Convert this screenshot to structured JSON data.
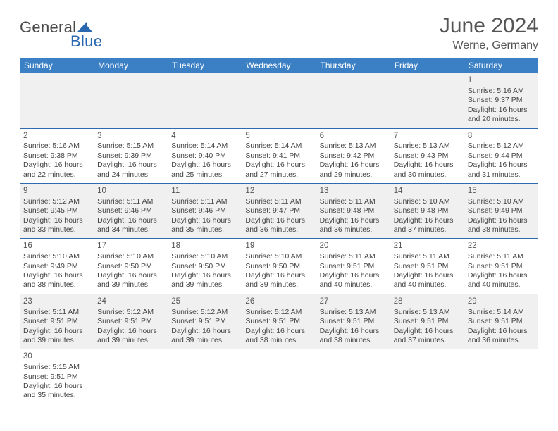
{
  "brand": {
    "part1": "General",
    "part2": "Blue"
  },
  "title": "June 2024",
  "location": "Werne, Germany",
  "colors": {
    "header_bg": "#3b7fc4",
    "header_fg": "#ffffff",
    "row_alt_bg": "#f0f0f0",
    "divider": "#2e6aad",
    "brand_gray": "#4a4a4a",
    "brand_blue": "#2967b0"
  },
  "daysOfWeek": [
    "Sunday",
    "Monday",
    "Tuesday",
    "Wednesday",
    "Thursday",
    "Friday",
    "Saturday"
  ],
  "startWeekday": 6,
  "days": [
    {
      "n": 1,
      "sunrise": "Sunrise: 5:16 AM",
      "sunset": "Sunset: 9:37 PM",
      "daylight": "Daylight: 16 hours and 20 minutes."
    },
    {
      "n": 2,
      "sunrise": "Sunrise: 5:16 AM",
      "sunset": "Sunset: 9:38 PM",
      "daylight": "Daylight: 16 hours and 22 minutes."
    },
    {
      "n": 3,
      "sunrise": "Sunrise: 5:15 AM",
      "sunset": "Sunset: 9:39 PM",
      "daylight": "Daylight: 16 hours and 24 minutes."
    },
    {
      "n": 4,
      "sunrise": "Sunrise: 5:14 AM",
      "sunset": "Sunset: 9:40 PM",
      "daylight": "Daylight: 16 hours and 25 minutes."
    },
    {
      "n": 5,
      "sunrise": "Sunrise: 5:14 AM",
      "sunset": "Sunset: 9:41 PM",
      "daylight": "Daylight: 16 hours and 27 minutes."
    },
    {
      "n": 6,
      "sunrise": "Sunrise: 5:13 AM",
      "sunset": "Sunset: 9:42 PM",
      "daylight": "Daylight: 16 hours and 29 minutes."
    },
    {
      "n": 7,
      "sunrise": "Sunrise: 5:13 AM",
      "sunset": "Sunset: 9:43 PM",
      "daylight": "Daylight: 16 hours and 30 minutes."
    },
    {
      "n": 8,
      "sunrise": "Sunrise: 5:12 AM",
      "sunset": "Sunset: 9:44 PM",
      "daylight": "Daylight: 16 hours and 31 minutes."
    },
    {
      "n": 9,
      "sunrise": "Sunrise: 5:12 AM",
      "sunset": "Sunset: 9:45 PM",
      "daylight": "Daylight: 16 hours and 33 minutes."
    },
    {
      "n": 10,
      "sunrise": "Sunrise: 5:11 AM",
      "sunset": "Sunset: 9:46 PM",
      "daylight": "Daylight: 16 hours and 34 minutes."
    },
    {
      "n": 11,
      "sunrise": "Sunrise: 5:11 AM",
      "sunset": "Sunset: 9:46 PM",
      "daylight": "Daylight: 16 hours and 35 minutes."
    },
    {
      "n": 12,
      "sunrise": "Sunrise: 5:11 AM",
      "sunset": "Sunset: 9:47 PM",
      "daylight": "Daylight: 16 hours and 36 minutes."
    },
    {
      "n": 13,
      "sunrise": "Sunrise: 5:11 AM",
      "sunset": "Sunset: 9:48 PM",
      "daylight": "Daylight: 16 hours and 36 minutes."
    },
    {
      "n": 14,
      "sunrise": "Sunrise: 5:10 AM",
      "sunset": "Sunset: 9:48 PM",
      "daylight": "Daylight: 16 hours and 37 minutes."
    },
    {
      "n": 15,
      "sunrise": "Sunrise: 5:10 AM",
      "sunset": "Sunset: 9:49 PM",
      "daylight": "Daylight: 16 hours and 38 minutes."
    },
    {
      "n": 16,
      "sunrise": "Sunrise: 5:10 AM",
      "sunset": "Sunset: 9:49 PM",
      "daylight": "Daylight: 16 hours and 38 minutes."
    },
    {
      "n": 17,
      "sunrise": "Sunrise: 5:10 AM",
      "sunset": "Sunset: 9:50 PM",
      "daylight": "Daylight: 16 hours and 39 minutes."
    },
    {
      "n": 18,
      "sunrise": "Sunrise: 5:10 AM",
      "sunset": "Sunset: 9:50 PM",
      "daylight": "Daylight: 16 hours and 39 minutes."
    },
    {
      "n": 19,
      "sunrise": "Sunrise: 5:10 AM",
      "sunset": "Sunset: 9:50 PM",
      "daylight": "Daylight: 16 hours and 39 minutes."
    },
    {
      "n": 20,
      "sunrise": "Sunrise: 5:11 AM",
      "sunset": "Sunset: 9:51 PM",
      "daylight": "Daylight: 16 hours and 40 minutes."
    },
    {
      "n": 21,
      "sunrise": "Sunrise: 5:11 AM",
      "sunset": "Sunset: 9:51 PM",
      "daylight": "Daylight: 16 hours and 40 minutes."
    },
    {
      "n": 22,
      "sunrise": "Sunrise: 5:11 AM",
      "sunset": "Sunset: 9:51 PM",
      "daylight": "Daylight: 16 hours and 40 minutes."
    },
    {
      "n": 23,
      "sunrise": "Sunrise: 5:11 AM",
      "sunset": "Sunset: 9:51 PM",
      "daylight": "Daylight: 16 hours and 39 minutes."
    },
    {
      "n": 24,
      "sunrise": "Sunrise: 5:12 AM",
      "sunset": "Sunset: 9:51 PM",
      "daylight": "Daylight: 16 hours and 39 minutes."
    },
    {
      "n": 25,
      "sunrise": "Sunrise: 5:12 AM",
      "sunset": "Sunset: 9:51 PM",
      "daylight": "Daylight: 16 hours and 39 minutes."
    },
    {
      "n": 26,
      "sunrise": "Sunrise: 5:12 AM",
      "sunset": "Sunset: 9:51 PM",
      "daylight": "Daylight: 16 hours and 38 minutes."
    },
    {
      "n": 27,
      "sunrise": "Sunrise: 5:13 AM",
      "sunset": "Sunset: 9:51 PM",
      "daylight": "Daylight: 16 hours and 38 minutes."
    },
    {
      "n": 28,
      "sunrise": "Sunrise: 5:13 AM",
      "sunset": "Sunset: 9:51 PM",
      "daylight": "Daylight: 16 hours and 37 minutes."
    },
    {
      "n": 29,
      "sunrise": "Sunrise: 5:14 AM",
      "sunset": "Sunset: 9:51 PM",
      "daylight": "Daylight: 16 hours and 36 minutes."
    },
    {
      "n": 30,
      "sunrise": "Sunrise: 5:15 AM",
      "sunset": "Sunset: 9:51 PM",
      "daylight": "Daylight: 16 hours and 35 minutes."
    }
  ]
}
